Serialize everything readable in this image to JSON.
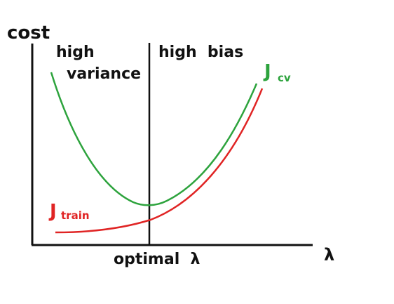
{
  "axes": {
    "ylabel": "cost",
    "xlabel": "λ"
  },
  "annotations": {
    "high_variance_line1": "high",
    "high_variance_line2": "variance",
    "high_bias": "high  bias",
    "optimal": "optimal  λ"
  },
  "curves": {
    "cv": {
      "label": "J",
      "subscript": "cv",
      "color": "#2da33d"
    },
    "train": {
      "label": "J",
      "subscript": "train",
      "color": "#e02424"
    }
  },
  "colors": {
    "axis": "#111111",
    "background": "#ffffff"
  }
}
